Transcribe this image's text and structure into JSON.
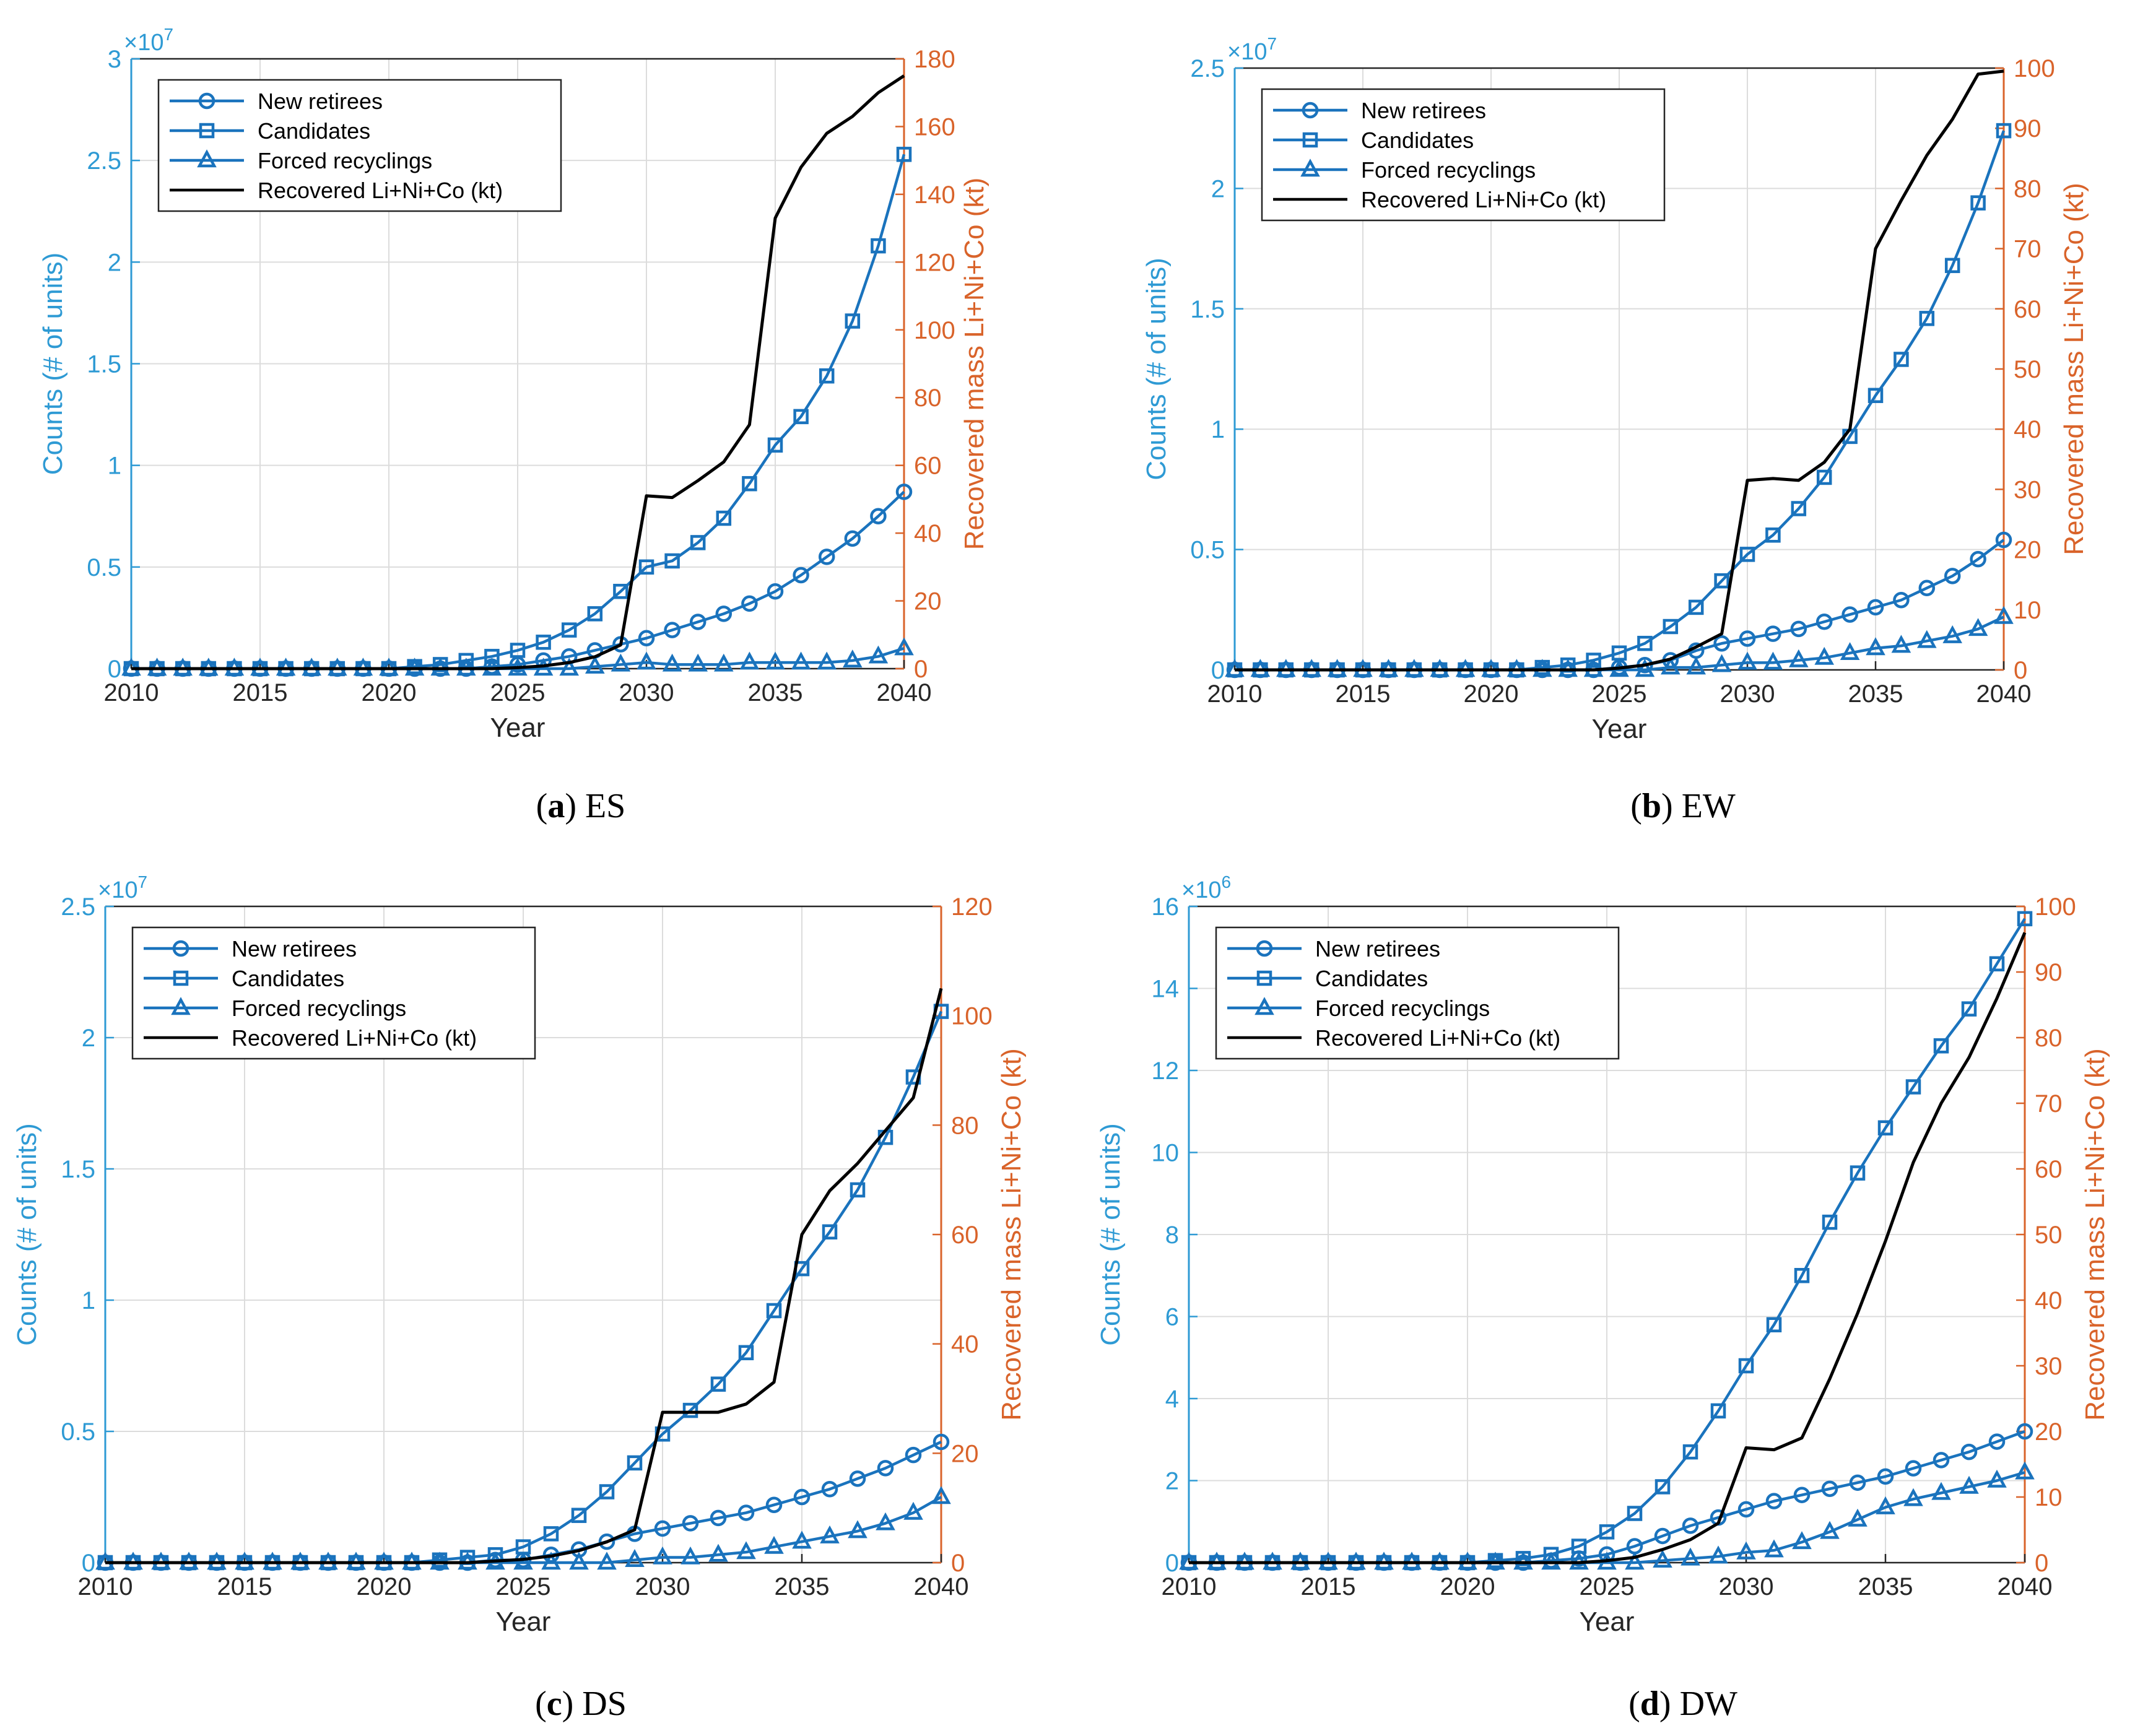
{
  "colors": {
    "left_axis": "#2e9ad4",
    "right_axis": "#d9632a",
    "series_blue": "#1a73bd",
    "series_black": "#000000",
    "grid": "#dcdcdc",
    "frame": "#262626"
  },
  "captions": [
    {
      "letter": "a",
      "text": "ES"
    },
    {
      "letter": "b",
      "text": "EW"
    },
    {
      "letter": "c",
      "text": "DS"
    },
    {
      "letter": "d",
      "text": "DW"
    }
  ],
  "chart_data": [
    {
      "type": "line",
      "title": "(a) ES",
      "xlabel": "Year",
      "ylabel": "Counts (# of units)",
      "y2label": "Recovered mass Li+Ni+Co (kt)",
      "multiplier": "×10",
      "multiplier_exp": "7",
      "x": [
        2010,
        2011,
        2012,
        2013,
        2014,
        2015,
        2016,
        2017,
        2018,
        2019,
        2020,
        2021,
        2022,
        2023,
        2024,
        2025,
        2026,
        2027,
        2028,
        2029,
        2030,
        2031,
        2032,
        2033,
        2034,
        2035,
        2036,
        2037,
        2038,
        2039,
        2040
      ],
      "xlim": [
        2010,
        2040
      ],
      "xticks": [
        "2010",
        "2015",
        "2020",
        "2025",
        "2030",
        "2035",
        "2040"
      ],
      "ylim": [
        0,
        3
      ],
      "yticks": [
        "0",
        "0.5",
        "1",
        "1.5",
        "2",
        "2.5",
        "3"
      ],
      "y2lim": [
        0,
        180
      ],
      "y2ticks": [
        "0",
        "20",
        "40",
        "60",
        "80",
        "100",
        "120",
        "140",
        "160",
        "180"
      ],
      "legend": {
        "position": "top-left",
        "entries": [
          "New retirees",
          "Candidates",
          "Forced recyclings",
          "Recovered Li+Ni+Co (kt)"
        ]
      },
      "series": [
        {
          "name": "New retirees",
          "marker": "circle",
          "axis": "left",
          "values": [
            0,
            0,
            0,
            0,
            0,
            0,
            0,
            0,
            0,
            0,
            0,
            0,
            0,
            0,
            0.01,
            0.02,
            0.04,
            0.06,
            0.09,
            0.12,
            0.15,
            0.19,
            0.23,
            0.27,
            0.32,
            0.38,
            0.46,
            0.55,
            0.64,
            0.75,
            0.87
          ]
        },
        {
          "name": "Candidates",
          "marker": "square",
          "axis": "left",
          "values": [
            0,
            0,
            0,
            0,
            0,
            0,
            0,
            0,
            0,
            0,
            0,
            0.01,
            0.02,
            0.04,
            0.06,
            0.09,
            0.13,
            0.19,
            0.27,
            0.38,
            0.5,
            0.53,
            0.62,
            0.74,
            0.91,
            1.1,
            1.24,
            1.44,
            1.71,
            2.08,
            2.53
          ]
        },
        {
          "name": "Forced recyclings",
          "marker": "triangle",
          "axis": "left",
          "values": [
            0,
            0,
            0,
            0,
            0,
            0,
            0,
            0,
            0,
            0,
            0,
            0,
            0,
            0,
            0,
            0,
            0,
            0,
            0.01,
            0.02,
            0.03,
            0.02,
            0.02,
            0.02,
            0.03,
            0.03,
            0.03,
            0.03,
            0.04,
            0.06,
            0.1
          ]
        },
        {
          "name": "Recovered Li+Ni+Co (kt)",
          "marker": "none",
          "axis": "right",
          "values": [
            0,
            0,
            0,
            0,
            0,
            0,
            0,
            0,
            0,
            0,
            0,
            0,
            0,
            0,
            0,
            0.3,
            0.8,
            1.8,
            3.5,
            7,
            51,
            50.5,
            55.5,
            61,
            72,
            133,
            148,
            158,
            163,
            170,
            175
          ]
        }
      ]
    },
    {
      "type": "line",
      "title": "(b) EW",
      "xlabel": "Year",
      "ylabel": "Counts (# of units)",
      "y2label": "Recovered mass Li+Ni+Co (kt)",
      "multiplier": "×10",
      "multiplier_exp": "7",
      "x": [
        2010,
        2011,
        2012,
        2013,
        2014,
        2015,
        2016,
        2017,
        2018,
        2019,
        2020,
        2021,
        2022,
        2023,
        2024,
        2025,
        2026,
        2027,
        2028,
        2029,
        2030,
        2031,
        2032,
        2033,
        2034,
        2035,
        2036,
        2037,
        2038,
        2039,
        2040
      ],
      "xlim": [
        2010,
        2040
      ],
      "xticks": [
        "2010",
        "2015",
        "2020",
        "2025",
        "2030",
        "2035",
        "2040"
      ],
      "ylim": [
        0,
        2.5
      ],
      "yticks": [
        "0",
        "0.5",
        "1",
        "1.5",
        "2",
        "2.5"
      ],
      "y2lim": [
        0,
        100
      ],
      "y2ticks": [
        "0",
        "10",
        "20",
        "30",
        "40",
        "50",
        "60",
        "70",
        "80",
        "90",
        "100"
      ],
      "legend": {
        "position": "top-left",
        "entries": [
          "New retirees",
          "Candidates",
          "Forced recyclings",
          "Recovered Li+Ni+Co (kt)"
        ]
      },
      "series": [
        {
          "name": "New retirees",
          "marker": "circle",
          "axis": "left",
          "values": [
            0,
            0,
            0,
            0,
            0,
            0,
            0,
            0,
            0,
            0,
            0,
            0,
            0,
            0,
            0,
            0.01,
            0.02,
            0.04,
            0.08,
            0.11,
            0.13,
            0.15,
            0.17,
            0.2,
            0.23,
            0.26,
            0.29,
            0.34,
            0.39,
            0.46,
            0.54
          ]
        },
        {
          "name": "Candidates",
          "marker": "square",
          "axis": "left",
          "values": [
            0,
            0,
            0,
            0,
            0,
            0,
            0,
            0,
            0,
            0,
            0,
            0,
            0.01,
            0.02,
            0.04,
            0.07,
            0.11,
            0.18,
            0.26,
            0.37,
            0.48,
            0.56,
            0.67,
            0.8,
            0.97,
            1.14,
            1.29,
            1.46,
            1.68,
            1.94,
            2.24
          ]
        },
        {
          "name": "Forced recyclings",
          "marker": "triangle",
          "axis": "left",
          "values": [
            0,
            0,
            0,
            0,
            0,
            0,
            0,
            0,
            0,
            0,
            0,
            0,
            0,
            0,
            0,
            0,
            0,
            0.01,
            0.01,
            0.02,
            0.03,
            0.03,
            0.04,
            0.05,
            0.07,
            0.09,
            0.1,
            0.12,
            0.14,
            0.17,
            0.22
          ]
        },
        {
          "name": "Recovered Li+Ni+Co (kt)",
          "marker": "none",
          "axis": "right",
          "values": [
            0,
            0,
            0,
            0,
            0,
            0,
            0,
            0,
            0,
            0,
            0,
            0,
            0,
            0,
            0,
            0.3,
            0.8,
            1.8,
            3.8,
            6,
            31.5,
            31.8,
            31.5,
            34.5,
            40,
            70,
            78,
            85.5,
            91.5,
            99,
            99.5
          ]
        }
      ]
    },
    {
      "type": "line",
      "title": "(c) DS",
      "xlabel": "Year",
      "ylabel": "Counts (# of units)",
      "y2label": "Recovered mass Li+Ni+Co (kt)",
      "multiplier": "×10",
      "multiplier_exp": "7",
      "x": [
        2010,
        2011,
        2012,
        2013,
        2014,
        2015,
        2016,
        2017,
        2018,
        2019,
        2020,
        2021,
        2022,
        2023,
        2024,
        2025,
        2026,
        2027,
        2028,
        2029,
        2030,
        2031,
        2032,
        2033,
        2034,
        2035,
        2036,
        2037,
        2038,
        2039,
        2040
      ],
      "xlim": [
        2010,
        2040
      ],
      "xticks": [
        "2010",
        "2015",
        "2020",
        "2025",
        "2030",
        "2035",
        "2040"
      ],
      "ylim": [
        0,
        2.5
      ],
      "yticks": [
        "0",
        "0.5",
        "1",
        "1.5",
        "2",
        "2.5"
      ],
      "y2lim": [
        0,
        120
      ],
      "y2ticks": [
        "0",
        "20",
        "40",
        "60",
        "80",
        "100",
        "120"
      ],
      "legend": {
        "position": "top-left",
        "entries": [
          "New retirees",
          "Candidates",
          "Forced recyclings",
          "Recovered Li+Ni+Co (kt)"
        ]
      },
      "series": [
        {
          "name": "New retirees",
          "marker": "circle",
          "axis": "left",
          "values": [
            0,
            0,
            0,
            0,
            0,
            0,
            0,
            0,
            0,
            0,
            0,
            0,
            0,
            0,
            0.01,
            0.01,
            0.03,
            0.05,
            0.08,
            0.11,
            0.13,
            0.15,
            0.17,
            0.19,
            0.22,
            0.25,
            0.28,
            0.32,
            0.36,
            0.41,
            0.46
          ]
        },
        {
          "name": "Candidates",
          "marker": "square",
          "axis": "left",
          "values": [
            0,
            0,
            0,
            0,
            0,
            0,
            0,
            0,
            0,
            0,
            0,
            0,
            0.01,
            0.02,
            0.03,
            0.06,
            0.11,
            0.18,
            0.27,
            0.38,
            0.49,
            0.58,
            0.68,
            0.8,
            0.96,
            1.12,
            1.26,
            1.42,
            1.62,
            1.85,
            2.1
          ]
        },
        {
          "name": "Forced recyclings",
          "marker": "triangle",
          "axis": "left",
          "values": [
            0,
            0,
            0,
            0,
            0,
            0,
            0,
            0,
            0,
            0,
            0,
            0,
            0,
            0,
            0,
            0,
            0,
            0,
            0,
            0.01,
            0.02,
            0.02,
            0.03,
            0.04,
            0.06,
            0.08,
            0.1,
            0.12,
            0.15,
            0.19,
            0.25
          ]
        },
        {
          "name": "Recovered Li+Ni+Co (kt)",
          "marker": "none",
          "axis": "right",
          "values": [
            0,
            0,
            0,
            0,
            0,
            0,
            0,
            0,
            0,
            0,
            0,
            0,
            0,
            0,
            0.3,
            0.6,
            1.2,
            2.2,
            3.8,
            6,
            27.5,
            27.5,
            27.5,
            29,
            33,
            60,
            68,
            73,
            79,
            85,
            105
          ]
        }
      ]
    },
    {
      "type": "line",
      "title": "(d) DW",
      "xlabel": "Year",
      "ylabel": "Counts (# of units)",
      "y2label": "Recovered mass Li+Ni+Co (kt)",
      "multiplier": "×10",
      "multiplier_exp": "6",
      "x": [
        2010,
        2011,
        2012,
        2013,
        2014,
        2015,
        2016,
        2017,
        2018,
        2019,
        2020,
        2021,
        2022,
        2023,
        2024,
        2025,
        2026,
        2027,
        2028,
        2029,
        2030,
        2031,
        2032,
        2033,
        2034,
        2035,
        2036,
        2037,
        2038,
        2039,
        2040
      ],
      "xlim": [
        2010,
        2040
      ],
      "xticks": [
        "2010",
        "2015",
        "2020",
        "2025",
        "2030",
        "2035",
        "2040"
      ],
      "ylim": [
        0,
        16
      ],
      "yticks": [
        "0",
        "2",
        "4",
        "6",
        "8",
        "10",
        "12",
        "14",
        "16"
      ],
      "y2lim": [
        0,
        100
      ],
      "y2ticks": [
        "0",
        "10",
        "20",
        "30",
        "40",
        "50",
        "60",
        "70",
        "80",
        "90",
        "100"
      ],
      "legend": {
        "position": "top-left",
        "entries": [
          "New retirees",
          "Candidates",
          "Forced recyclings",
          "Recovered Li+Ni+Co (kt)"
        ]
      },
      "series": [
        {
          "name": "New retirees",
          "marker": "circle",
          "axis": "left",
          "values": [
            0,
            0,
            0,
            0,
            0,
            0,
            0,
            0,
            0,
            0,
            0,
            0,
            0,
            0.05,
            0.1,
            0.2,
            0.4,
            0.65,
            0.9,
            1.1,
            1.3,
            1.5,
            1.65,
            1.8,
            1.95,
            2.1,
            2.3,
            2.5,
            2.7,
            2.95,
            3.2
          ]
        },
        {
          "name": "Candidates",
          "marker": "square",
          "axis": "left",
          "values": [
            0,
            0,
            0,
            0,
            0,
            0,
            0,
            0,
            0,
            0,
            0,
            0.05,
            0.1,
            0.2,
            0.4,
            0.75,
            1.2,
            1.85,
            2.7,
            3.7,
            4.8,
            5.8,
            7,
            8.3,
            9.5,
            10.6,
            11.6,
            12.6,
            13.5,
            14.6,
            15.7
          ]
        },
        {
          "name": "Forced recyclings",
          "marker": "triangle",
          "axis": "left",
          "values": [
            0,
            0,
            0,
            0,
            0,
            0,
            0,
            0,
            0,
            0,
            0,
            0,
            0,
            0,
            0,
            0,
            0,
            0.05,
            0.1,
            0.15,
            0.25,
            0.3,
            0.5,
            0.75,
            1.05,
            1.35,
            1.55,
            1.7,
            1.85,
            2,
            2.2
          ]
        },
        {
          "name": "Recovered Li+Ni+Co (kt)",
          "marker": "none",
          "axis": "right",
          "values": [
            0,
            0,
            0,
            0,
            0,
            0,
            0,
            0,
            0,
            0,
            0,
            0,
            0,
            0,
            0,
            0.3,
            0.8,
            2,
            3.5,
            6,
            17.5,
            17.2,
            19,
            28,
            38,
            49,
            61,
            70,
            77,
            86,
            96
          ]
        }
      ]
    }
  ]
}
